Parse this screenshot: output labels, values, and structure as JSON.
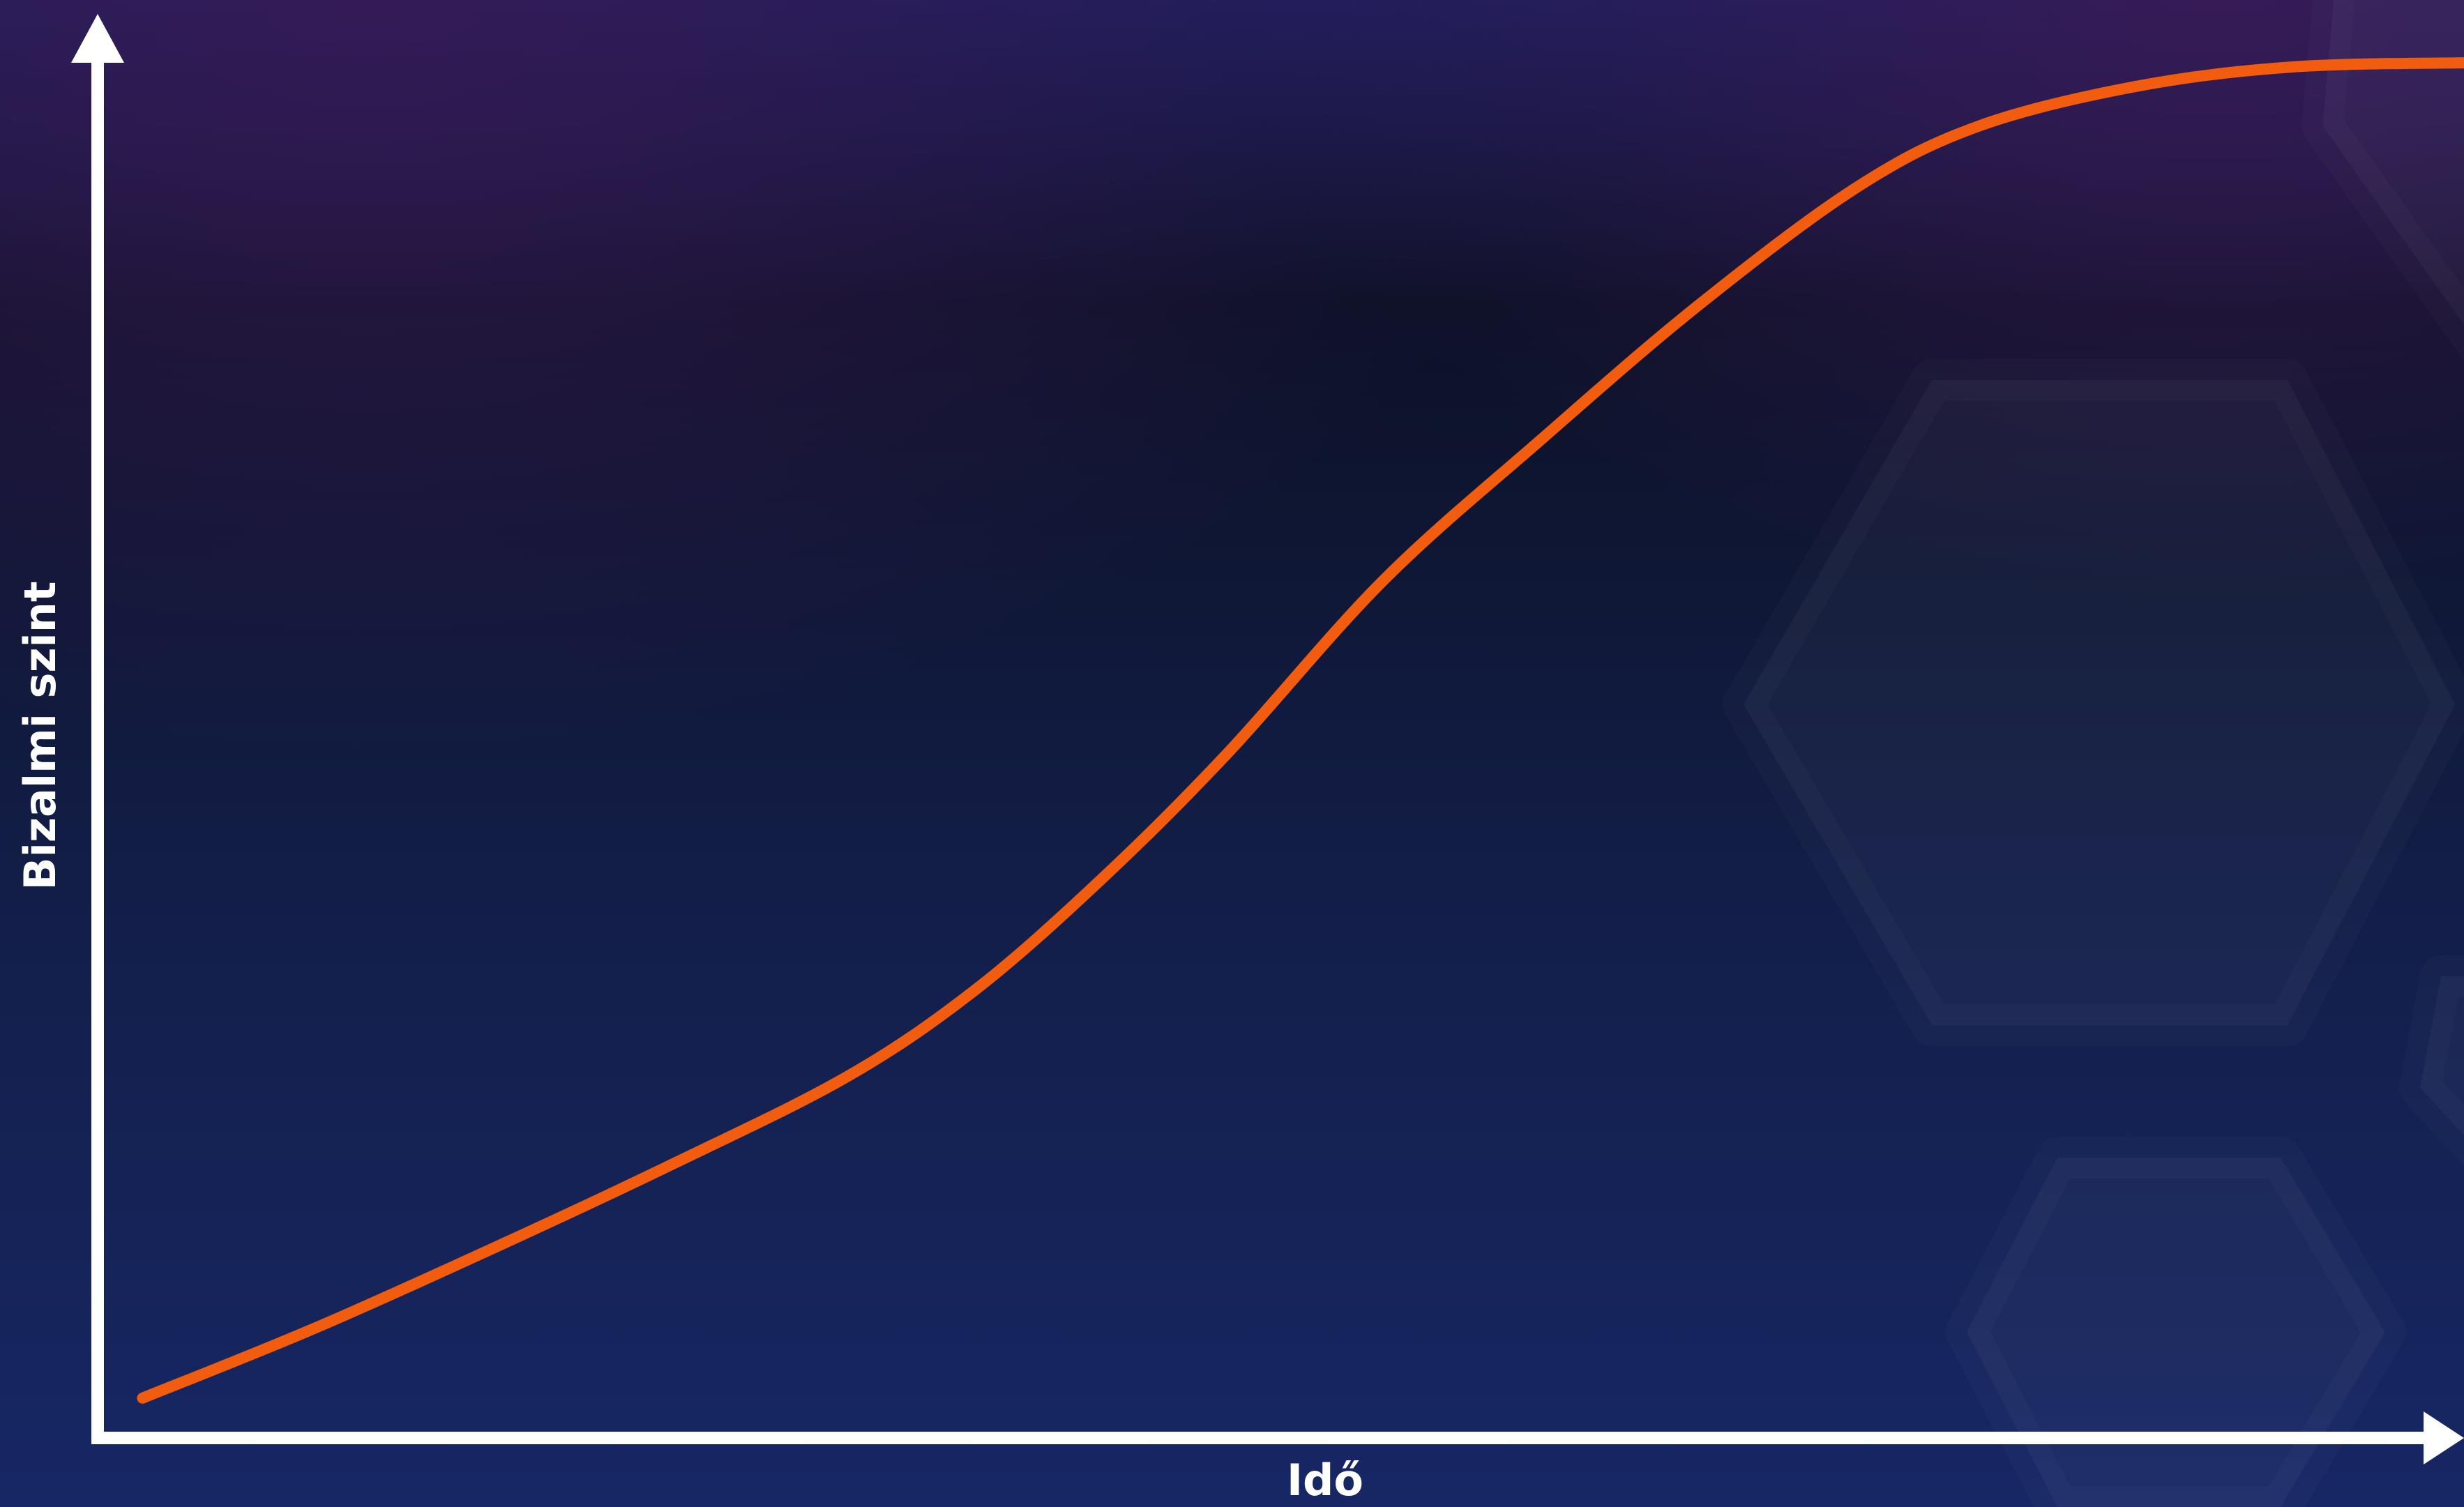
{
  "chart_data": {
    "type": "line",
    "x_label": "Idő",
    "y_label": "Bizalmi szint",
    "x": [
      1.9,
      9.2,
      17.1,
      24.4,
      31.7,
      37.1,
      42.4,
      47.7,
      54.3,
      61.0,
      67.6,
      74.3,
      79.5,
      86.2,
      92.8,
      100
    ],
    "values": [
      2.9,
      8.0,
      14.1,
      20.0,
      26.3,
      32.6,
      40.6,
      49.7,
      62.3,
      72.6,
      82.3,
      90.9,
      95.4,
      98.3,
      99.7,
      100
    ],
    "color": "#f25c0f",
    "xlim": [
      0,
      100
    ],
    "ylim": [
      0,
      100
    ]
  }
}
